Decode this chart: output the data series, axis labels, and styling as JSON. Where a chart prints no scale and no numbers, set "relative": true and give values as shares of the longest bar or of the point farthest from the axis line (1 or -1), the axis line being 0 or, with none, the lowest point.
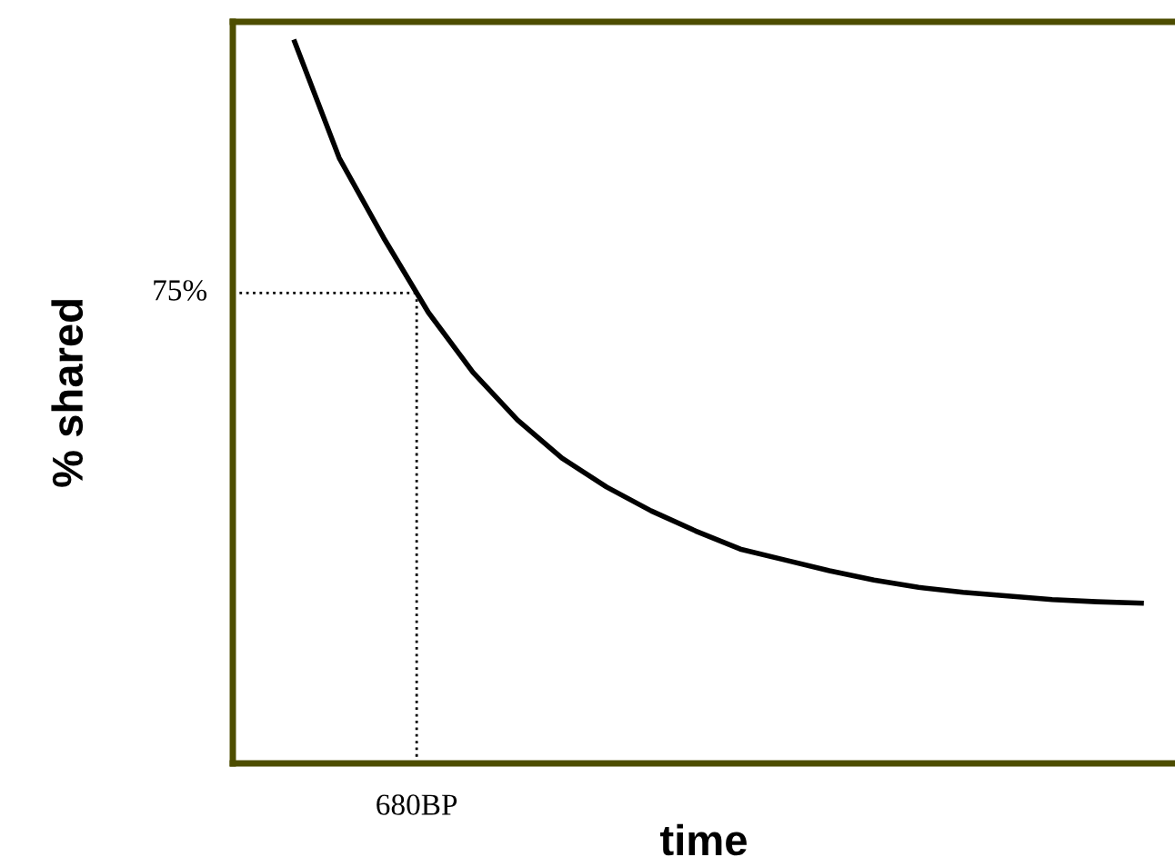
{
  "chart_data": {
    "type": "line",
    "relative": true,
    "xlabel": "time",
    "ylabel": "% shared",
    "categories": [
      null,
      null,
      null,
      null,
      null,
      null,
      null,
      null,
      null,
      null,
      null,
      null,
      null,
      null,
      null,
      null,
      null,
      null,
      null,
      null
    ],
    "series": [
      {
        "color": "#000000",
        "values": [
          1,
          0.839,
          0.728,
          0.625,
          0.542,
          0.476,
          0.423,
          0.383,
          0.35,
          0.322,
          0.297,
          0.282,
          0.267,
          0.254,
          0.244,
          0.237,
          0.232,
          0.227,
          0.224,
          0.222
        ]
      }
    ],
    "annotations": [
      "75%",
      "680BP"
    ],
    "ref_lines": [
      {
        "axis": "y",
        "value": 0.652,
        "line_style": "dotted",
        "color": "#000000"
      }
    ],
    "legend": false,
    "marker": "none",
    "line_style": "solid"
  }
}
